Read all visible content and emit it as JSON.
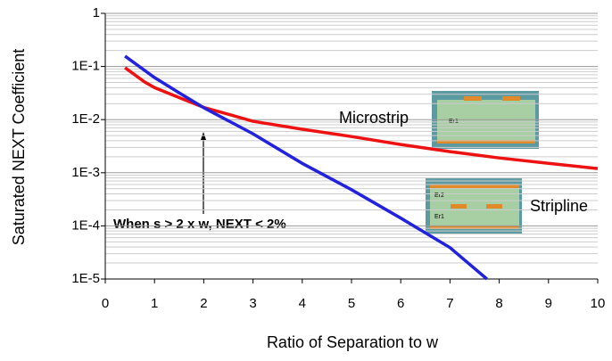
{
  "chart_data": {
    "type": "line",
    "ylabel": "Saturated NEXT Coefficient",
    "xlabel": "Ratio of Separation to w",
    "xlim": [
      0,
      10
    ],
    "xticks": [
      0,
      1,
      2,
      3,
      4,
      5,
      6,
      7,
      8,
      9,
      10
    ],
    "ylim": [
      1e-05,
      1
    ],
    "yticks": [
      {
        "value": 1e-05,
        "label": "1E-5"
      },
      {
        "value": 0.0001,
        "label": "1E-4"
      },
      {
        "value": 0.001,
        "label": "1E-3"
      },
      {
        "value": 0.01,
        "label": "1E-2"
      },
      {
        "value": 0.1,
        "label": "1E-1"
      },
      1
    ],
    "ylog": true,
    "grid": true,
    "minor_grid": true,
    "series": [
      {
        "name": "Microstrip",
        "color": "#ee1111",
        "x": [
          0.4,
          0.8,
          1,
          1.5,
          2,
          2.5,
          3,
          4,
          5,
          6,
          7,
          8,
          9,
          10
        ],
        "values": [
          0.095,
          0.051,
          0.04,
          0.026,
          0.017,
          0.0126,
          0.0093,
          0.0066,
          0.0048,
          0.0034,
          0.0025,
          0.0019,
          0.0015,
          0.0012
        ]
      },
      {
        "name": "Stripline",
        "color": "#2222dd",
        "x": [
          0.4,
          1,
          1.5,
          2,
          3,
          4,
          5,
          6,
          7,
          7.75
        ],
        "values": [
          0.157,
          0.062,
          0.032,
          0.0167,
          0.0054,
          0.0015,
          0.00048,
          0.00014,
          3.9e-05,
          1e-05
        ]
      }
    ],
    "annotation": "When s > 2 x w, NEXT < 2%",
    "microstrip_inset_labels": [
      "Er1"
    ],
    "stripline_inset_labels": [
      "Er2",
      "Er1"
    ]
  }
}
